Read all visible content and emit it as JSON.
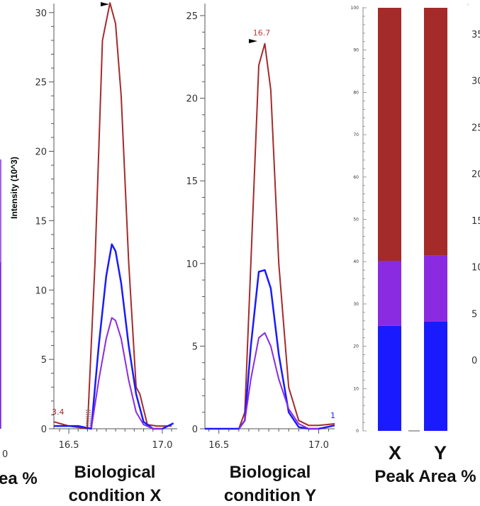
{
  "colors": {
    "series1": "#a52a2a",
    "series2": "#1a1aff",
    "series3": "#8a2be2",
    "axis": "#555555"
  },
  "left_caption": {
    "line1": "ea %"
  },
  "left_edge_ticks": [
    "0"
  ],
  "chart_data": [
    {
      "type": "line",
      "title": "",
      "xlabel": "Biological condition X",
      "xlabel_lines": [
        "Biological",
        "condition X"
      ],
      "ylabel": "Intensity (10^3)",
      "x_ticks": [
        "16.5",
        "17.0"
      ],
      "y_ticks": [
        "0",
        "5",
        "10",
        "15",
        "20",
        "25",
        "30"
      ],
      "xlim": [
        16.42,
        17.08
      ],
      "ylim": [
        0,
        30.5
      ],
      "peak_label_left": "3.4",
      "series": [
        {
          "color": "#a52a2a",
          "x": [
            16.42,
            16.5,
            16.6,
            16.6,
            16.64,
            16.68,
            16.72,
            16.75,
            16.78,
            16.82,
            16.86,
            16.88,
            16.92,
            16.97,
            17.0,
            17.05
          ],
          "y": [
            0.5,
            0.2,
            0,
            0.2,
            12,
            28,
            30.7,
            29.2,
            24,
            12,
            3,
            2.5,
            0.3,
            0.2,
            0.2,
            0.2
          ]
        },
        {
          "color": "#1a1aff",
          "x": [
            16.42,
            16.55,
            16.62,
            16.66,
            16.7,
            16.73,
            16.75,
            16.78,
            16.82,
            16.86,
            16.9,
            16.95,
            17.0,
            17.03,
            17.06
          ],
          "y": [
            0.2,
            0.2,
            0,
            6,
            11,
            13.3,
            12.8,
            10.5,
            6,
            2.5,
            0.5,
            0,
            0,
            0.2,
            0.4
          ]
        },
        {
          "color": "#8a2be2",
          "x": [
            16.62,
            16.66,
            16.7,
            16.73,
            16.75,
            16.78,
            16.82,
            16.86,
            16.9,
            16.95,
            17.0
          ],
          "y": [
            0,
            3.5,
            6.5,
            8,
            7.8,
            6.5,
            3.5,
            1.2,
            0.3,
            0,
            0
          ]
        }
      ]
    },
    {
      "type": "line",
      "title": "",
      "xlabel": "Biological condition Y",
      "xlabel_lines": [
        "Biological",
        "condition Y"
      ],
      "x_ticks": [
        "16.5",
        "17.0"
      ],
      "y_ticks": [
        "0",
        "5",
        "10",
        "15",
        "20",
        "25"
      ],
      "xlim": [
        16.43,
        17.08
      ],
      "ylim": [
        0,
        25.6
      ],
      "peak_label": "16.7",
      "peak_label_right": "1",
      "series": [
        {
          "color": "#a52a2a",
          "x": [
            16.43,
            16.6,
            16.63,
            16.66,
            16.7,
            16.73,
            16.76,
            16.8,
            16.85,
            16.9,
            16.95,
            17.0,
            17.08
          ],
          "y": [
            0,
            0,
            1,
            10,
            22,
            23.3,
            20.5,
            10,
            2.5,
            0.5,
            0.2,
            0.2,
            0.3
          ]
        },
        {
          "color": "#1a1aff",
          "x": [
            16.43,
            16.6,
            16.63,
            16.66,
            16.7,
            16.73,
            16.76,
            16.8,
            16.85,
            16.9,
            16.95,
            17.0,
            17.08
          ],
          "y": [
            0,
            0,
            0.5,
            5,
            9.5,
            9.6,
            8.5,
            4.5,
            1,
            0.1,
            0,
            0,
            0.2
          ]
        },
        {
          "color": "#8a2be2",
          "x": [
            16.6,
            16.63,
            16.66,
            16.7,
            16.73,
            16.76,
            16.8,
            16.85,
            16.9,
            16.95,
            17.0
          ],
          "y": [
            0,
            0.5,
            3,
            5.5,
            5.8,
            5,
            3,
            1.2,
            0.3,
            0,
            0
          ]
        }
      ]
    },
    {
      "type": "bar",
      "stacked": true,
      "title": "",
      "xlabel": "Peak Area %",
      "categories": [
        "X",
        "Y"
      ],
      "y_ticks": [
        "0",
        "10",
        "20",
        "30",
        "40",
        "50",
        "60",
        "70",
        "80",
        "90",
        "100"
      ],
      "ylim": [
        0,
        100
      ],
      "series": [
        {
          "color": "#1a1aff",
          "values": [
            24.8,
            25.8
          ]
        },
        {
          "color": "#8a2be2",
          "values": [
            15.4,
            15.6
          ]
        },
        {
          "color": "#a52a2a",
          "values": [
            59.8,
            58.6
          ]
        }
      ]
    }
  ],
  "right_edge_ticks": [
    "35",
    "30",
    "25",
    "20",
    "15",
    "10",
    "5",
    "0"
  ]
}
